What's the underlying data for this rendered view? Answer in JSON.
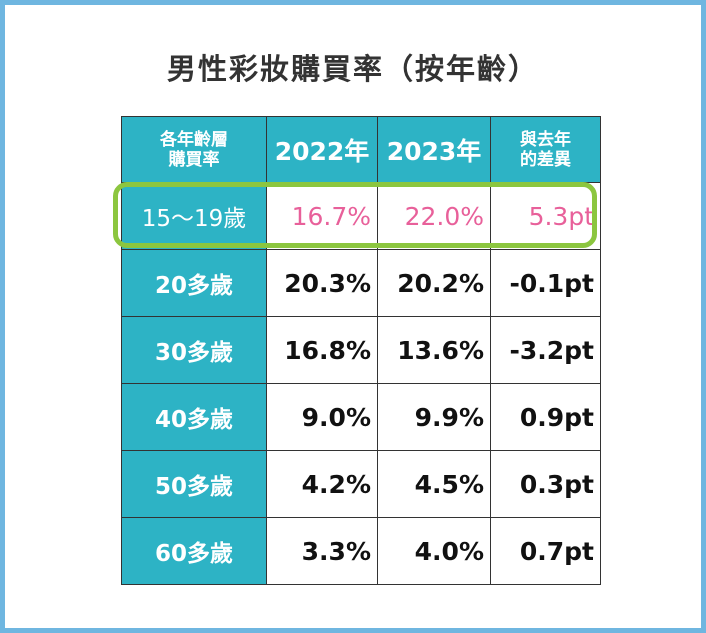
{
  "title": "男性彩妝購買率（按年齡）",
  "header": {
    "corner_line1": "各年齡層",
    "corner_line2": "購買率",
    "col_2022": "2022年",
    "col_2023": "2023年",
    "diff_line1": "與去年",
    "diff_line2": "的差異"
  },
  "rows": [
    {
      "age": "15～19歲",
      "v2022": "16.7%",
      "v2023": "22.0%",
      "diff": "5.3pt"
    },
    {
      "age": "20多歲",
      "v2022": "20.3%",
      "v2023": "20.2%",
      "diff": "-0.1pt"
    },
    {
      "age": "30多歲",
      "v2022": "16.8%",
      "v2023": "13.6%",
      "diff": "-3.2pt"
    },
    {
      "age": "40多歲",
      "v2022": "9.0%",
      "v2023": "9.9%",
      "diff": "0.9pt"
    },
    {
      "age": "50多歲",
      "v2022": "4.2%",
      "v2023": "4.5%",
      "diff": "0.3pt"
    },
    {
      "age": "60多歲",
      "v2022": "3.3%",
      "v2023": "4.0%",
      "diff": "0.7pt"
    }
  ],
  "colors": {
    "header_bg": "#2db3c5",
    "highlight_text": "#e8609a",
    "highlight_border": "#8cc63f",
    "frame": "#6fb6e0"
  },
  "chart_data": {
    "type": "table",
    "title": "男性彩妝購買率（按年齡）",
    "columns": [
      "各年齡層購買率",
      "2022年",
      "2023年",
      "與去年的差異"
    ],
    "categories": [
      "15～19歲",
      "20多歲",
      "30多歲",
      "40多歲",
      "50多歲",
      "60多歲"
    ],
    "series": [
      {
        "name": "2022年",
        "values": [
          16.7,
          20.3,
          16.8,
          9.0,
          4.2,
          3.3
        ]
      },
      {
        "name": "2023年",
        "values": [
          22.0,
          20.2,
          13.6,
          9.9,
          4.5,
          4.0
        ]
      },
      {
        "name": "與去年的差異",
        "values": [
          5.3,
          -0.1,
          -3.2,
          0.9,
          0.3,
          0.7
        ]
      }
    ],
    "highlighted_row": "15～19歲"
  }
}
